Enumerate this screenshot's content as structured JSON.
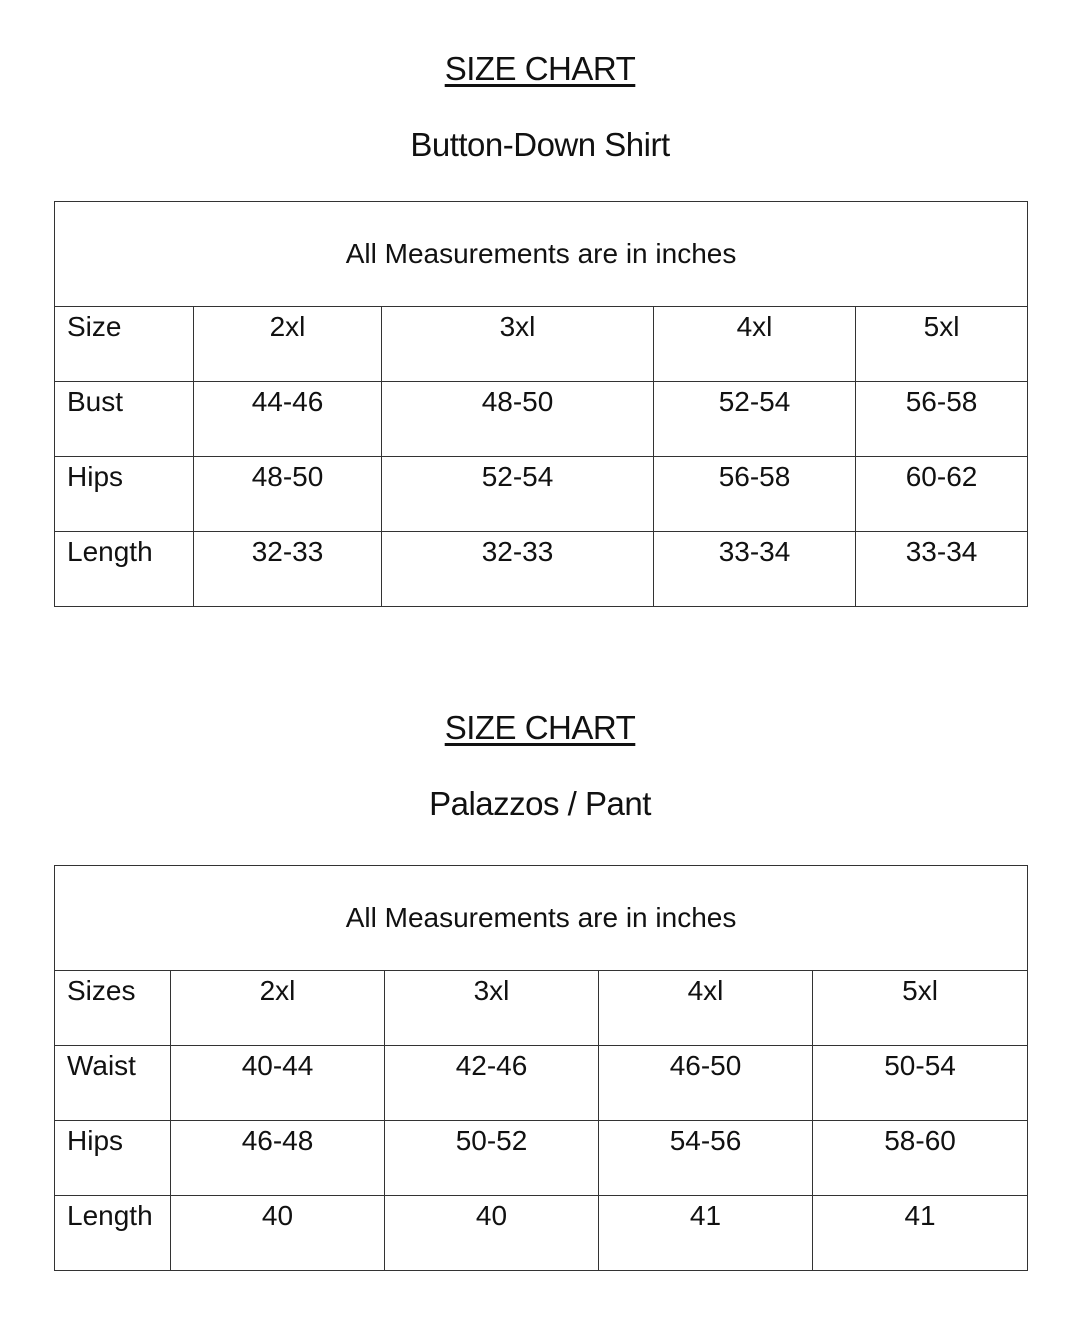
{
  "charts": [
    {
      "title": "SIZE CHART",
      "subtitle": "Button-Down Shirt",
      "note": "All Measurements are in inches",
      "header_label": "Size",
      "sizes": [
        "2xl",
        "3xl",
        "4xl",
        "5xl"
      ],
      "rows": [
        {
          "label": "Bust",
          "values": [
            "44-46",
            "48-50",
            "52-54",
            "56-58"
          ]
        },
        {
          "label": "Hips",
          "values": [
            "48-50",
            "52-54",
            "56-58",
            "60-62"
          ]
        },
        {
          "label": "Length",
          "values": [
            "32-33",
            "32-33",
            "33-34",
            "33-34"
          ]
        }
      ]
    },
    {
      "title": "SIZE CHART",
      "subtitle": "Palazzos / Pant",
      "note": "All Measurements are in inches",
      "header_label": "Sizes",
      "sizes": [
        "2xl",
        "3xl",
        "4xl",
        "5xl"
      ],
      "rows": [
        {
          "label": "Waist",
          "values": [
            "40-44",
            "42-46",
            "46-50",
            "50-54"
          ]
        },
        {
          "label": "Hips",
          "values": [
            "46-48",
            "50-52",
            "54-56",
            "58-60"
          ]
        },
        {
          "label": "Length",
          "values": [
            "40",
            "40",
            "41",
            "41"
          ]
        }
      ]
    }
  ]
}
